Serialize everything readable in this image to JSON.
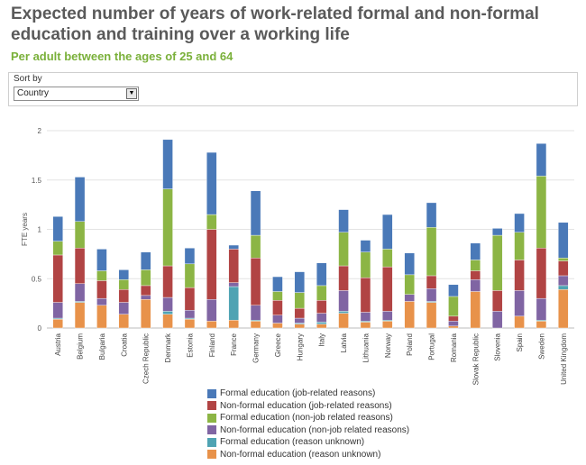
{
  "title": "Expected number of years of work-related formal and non-formal education and training over a working life",
  "subtitle": "Per adult between the ages of 25 and 64",
  "sort": {
    "label": "Sort by",
    "value": "Country"
  },
  "chart_data": {
    "type": "bar",
    "stacked": true,
    "ylabel": "FTE years",
    "ylim": [
      0,
      2
    ],
    "yticks": [
      "0",
      "0.5",
      "1",
      "1.5",
      "2"
    ],
    "grid": true,
    "legend_position": "bottom",
    "categories": [
      "Austria",
      "Belgium",
      "Bulgaria",
      "Croatia",
      "Czech Republic",
      "Denmark",
      "Estonia",
      "Finland",
      "France",
      "Germany",
      "Greece",
      "Hungary",
      "Italy",
      "Latvia",
      "Lithuania",
      "Norway",
      "Poland",
      "Portugal",
      "Romania",
      "Slovak Republic",
      "Slovenia",
      "Spain",
      "Sweden",
      "United Kingdom"
    ],
    "series": [
      {
        "name": "Non-formal education (reason unknown)",
        "color": "#e8924a",
        "values": [
          0.09,
          0.26,
          0.23,
          0.14,
          0.29,
          0.14,
          0.09,
          0.07,
          0.08,
          0.07,
          0.05,
          0.04,
          0.04,
          0.15,
          0.06,
          0.07,
          0.27,
          0.26,
          0.02,
          0.37,
          0.0,
          0.12,
          0.07,
          0.39
        ]
      },
      {
        "name": "Formal education (reason unknown)",
        "color": "#4fa3b3",
        "values": [
          0.01,
          0.01,
          0.0,
          0.0,
          0.0,
          0.03,
          0.01,
          0.0,
          0.34,
          0.01,
          0.0,
          0.01,
          0.02,
          0.02,
          0.01,
          0.01,
          0.0,
          0.01,
          0.0,
          0.0,
          0.0,
          0.0,
          0.01,
          0.04
        ]
      },
      {
        "name": "Non-formal education (non-job related reasons)",
        "color": "#8065a3",
        "values": [
          0.16,
          0.18,
          0.07,
          0.12,
          0.04,
          0.14,
          0.08,
          0.22,
          0.04,
          0.15,
          0.08,
          0.05,
          0.09,
          0.21,
          0.09,
          0.09,
          0.07,
          0.13,
          0.05,
          0.12,
          0.17,
          0.26,
          0.22,
          0.1
        ]
      },
      {
        "name": "Non-formal education (job-related reasons)",
        "color": "#b14444",
        "values": [
          0.48,
          0.36,
          0.18,
          0.13,
          0.1,
          0.32,
          0.23,
          0.71,
          0.34,
          0.48,
          0.15,
          0.1,
          0.13,
          0.25,
          0.35,
          0.45,
          0.0,
          0.13,
          0.05,
          0.09,
          0.21,
          0.31,
          0.51,
          0.15
        ]
      },
      {
        "name": "Formal education (non-job related reasons)",
        "color": "#8cb545",
        "values": [
          0.14,
          0.27,
          0.1,
          0.1,
          0.16,
          0.78,
          0.24,
          0.15,
          0.0,
          0.23,
          0.09,
          0.16,
          0.15,
          0.34,
          0.26,
          0.18,
          0.2,
          0.49,
          0.2,
          0.11,
          0.56,
          0.28,
          0.73,
          0.03
        ]
      },
      {
        "name": "Formal education (job-related reasons)",
        "color": "#4a79b8",
        "values": [
          0.25,
          0.45,
          0.22,
          0.1,
          0.18,
          0.5,
          0.16,
          0.63,
          0.04,
          0.45,
          0.15,
          0.21,
          0.23,
          0.23,
          0.12,
          0.35,
          0.22,
          0.25,
          0.12,
          0.17,
          0.07,
          0.19,
          0.33,
          0.36
        ]
      }
    ],
    "legend_order": [
      "Formal education (job-related reasons)",
      "Non-formal education (job-related reasons)",
      "Formal education (non-job related reasons)",
      "Non-formal education (non-job related reasons)",
      "Formal education (reason unknown)",
      "Non-formal education (reason unknown)"
    ]
  }
}
